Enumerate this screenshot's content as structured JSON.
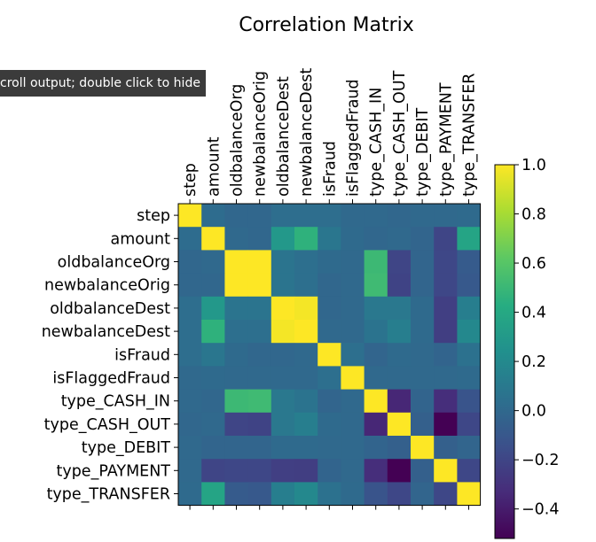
{
  "tooltip": {
    "text": "croll output; double click to hide"
  },
  "chart_data": {
    "type": "heatmap",
    "title": "Correlation Matrix",
    "labels": [
      "step",
      "amount",
      "oldbalanceOrg",
      "newbalanceOrig",
      "oldbalanceDest",
      "newbalanceDest",
      "isFraud",
      "isFlaggedFraud",
      "type_CASH_IN",
      "type_CASH_OUT",
      "type_DEBIT",
      "type_PAYMENT",
      "type_TRANSFER"
    ],
    "matrix": [
      [
        1.0,
        0.02,
        -0.01,
        -0.01,
        0.03,
        0.03,
        0.03,
        0.0,
        0.0,
        -0.01,
        0.0,
        0.0,
        0.01
      ],
      [
        0.02,
        1.0,
        -0.0,
        -0.01,
        0.29,
        0.46,
        0.08,
        0.01,
        -0.01,
        -0.0,
        -0.02,
        -0.2,
        0.37
      ],
      [
        -0.01,
        -0.0,
        1.0,
        1.0,
        0.07,
        0.04,
        0.01,
        0.0,
        0.51,
        -0.2,
        -0.02,
        -0.19,
        -0.08
      ],
      [
        -0.01,
        -0.01,
        1.0,
        1.0,
        0.07,
        0.04,
        -0.01,
        0.0,
        0.52,
        -0.21,
        -0.02,
        -0.19,
        -0.09
      ],
      [
        0.03,
        0.29,
        0.07,
        0.07,
        1.0,
        0.98,
        -0.01,
        -0.0,
        0.09,
        0.09,
        0.01,
        -0.23,
        0.13
      ],
      [
        0.03,
        0.46,
        0.04,
        0.04,
        0.98,
        1.0,
        0.0,
        -0.0,
        0.06,
        0.13,
        0.01,
        -0.24,
        0.19
      ],
      [
        0.03,
        0.08,
        0.01,
        -0.01,
        -0.01,
        0.0,
        1.0,
        0.04,
        -0.02,
        0.01,
        -0.0,
        -0.03,
        0.05
      ],
      [
        0.0,
        0.01,
        0.0,
        0.0,
        -0.0,
        -0.0,
        0.04,
        1.0,
        -0.0,
        -0.0,
        -0.0,
        -0.0,
        0.01
      ],
      [
        0.0,
        -0.01,
        0.51,
        0.52,
        0.09,
        0.06,
        -0.02,
        -0.0,
        1.0,
        -0.35,
        -0.03,
        -0.32,
        -0.12
      ],
      [
        -0.01,
        -0.0,
        -0.2,
        -0.21,
        0.09,
        0.13,
        0.01,
        -0.0,
        -0.35,
        1.0,
        -0.05,
        -0.52,
        -0.19
      ],
      [
        0.0,
        -0.02,
        -0.02,
        -0.02,
        0.01,
        0.01,
        -0.0,
        -0.0,
        -0.03,
        -0.05,
        1.0,
        -0.05,
        -0.02
      ],
      [
        0.0,
        -0.2,
        -0.19,
        -0.19,
        -0.23,
        -0.24,
        -0.03,
        -0.0,
        -0.32,
        -0.52,
        -0.05,
        1.0,
        -0.19
      ],
      [
        0.01,
        0.37,
        -0.08,
        -0.09,
        0.13,
        0.19,
        0.05,
        0.01,
        -0.12,
        -0.19,
        -0.02,
        -0.19,
        1.0
      ]
    ],
    "colorbar": {
      "range": [
        -0.52,
        1.0
      ],
      "ticks": [
        1.0,
        0.8,
        0.6,
        0.4,
        0.2,
        0.0,
        -0.2,
        -0.4
      ],
      "tick_labels": [
        "1.0",
        "0.8",
        "0.6",
        "0.4",
        "0.2",
        "0.0",
        "−0.2",
        "−0.4"
      ]
    },
    "colormap": "viridis",
    "grid": false,
    "legend": "colorbar-right"
  }
}
